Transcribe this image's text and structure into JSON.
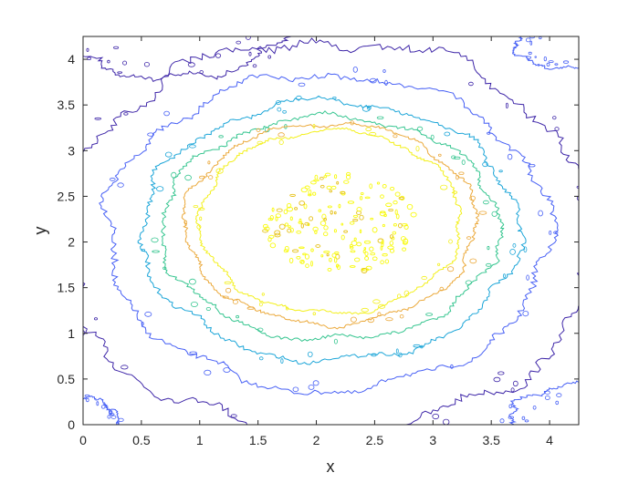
{
  "chart_data": {
    "type": "contour",
    "title": "",
    "xlabel": "x",
    "ylabel": "y",
    "xlim": [
      0,
      4.25
    ],
    "ylim": [
      0,
      4.25
    ],
    "xticks": [
      "0",
      "0.5",
      "1",
      "1.5",
      "2",
      "2.5",
      "3",
      "3.5",
      "4"
    ],
    "yticks": [
      "0",
      "0.5",
      "1",
      "1.5",
      "2",
      "2.5",
      "3",
      "3.5",
      "4"
    ],
    "grid": false,
    "colormap": "parula",
    "contours": [
      {
        "level": 1,
        "color": "#3e26a8",
        "cx": 2.1,
        "cy": 2.05,
        "rx": 2.3,
        "ry": 2.15,
        "wobble": 0.06
      },
      {
        "level": 2,
        "color": "#4760f5",
        "cx": 2.1,
        "cy": 2.1,
        "rx": 1.9,
        "ry": 1.73,
        "wobble": 0.05
      },
      {
        "level": 3,
        "color": "#1ba5d8",
        "cx": 2.12,
        "cy": 2.12,
        "rx": 1.62,
        "ry": 1.42,
        "wobble": 0.045
      },
      {
        "level": 4,
        "color": "#35c58f",
        "cx": 2.12,
        "cy": 2.15,
        "rx": 1.45,
        "ry": 1.22,
        "wobble": 0.045
      },
      {
        "level": 5,
        "color": "#eba93b",
        "cx": 2.12,
        "cy": 2.2,
        "rx": 1.25,
        "ry": 1.1,
        "wobble": 0.04
      },
      {
        "level": 6,
        "color": "#f3f01c",
        "cx": 2.12,
        "cy": 2.22,
        "rx": 1.12,
        "ry": 1.0,
        "wobble": 0.04
      }
    ],
    "peak_region": {
      "color": "#f8fa0d",
      "cx": 2.2,
      "cy": 2.2,
      "rx": 0.65,
      "ry": 0.55
    },
    "corner_contours": [
      {
        "color": "#3e26a8",
        "cx": 0.75,
        "cy": 4.35,
        "rx": 0.95,
        "ry": 0.55
      },
      {
        "color": "#4760f5",
        "cx": 4.15,
        "cy": 4.15,
        "rx": 0.45,
        "ry": 0.25
      },
      {
        "color": "#4760f5",
        "cx": 0.0,
        "cy": 0.0,
        "rx": 0.3,
        "ry": 0.3
      },
      {
        "color": "#4760f5",
        "cx": 4.3,
        "cy": 0.0,
        "rx": 0.65,
        "ry": 0.45
      }
    ]
  }
}
